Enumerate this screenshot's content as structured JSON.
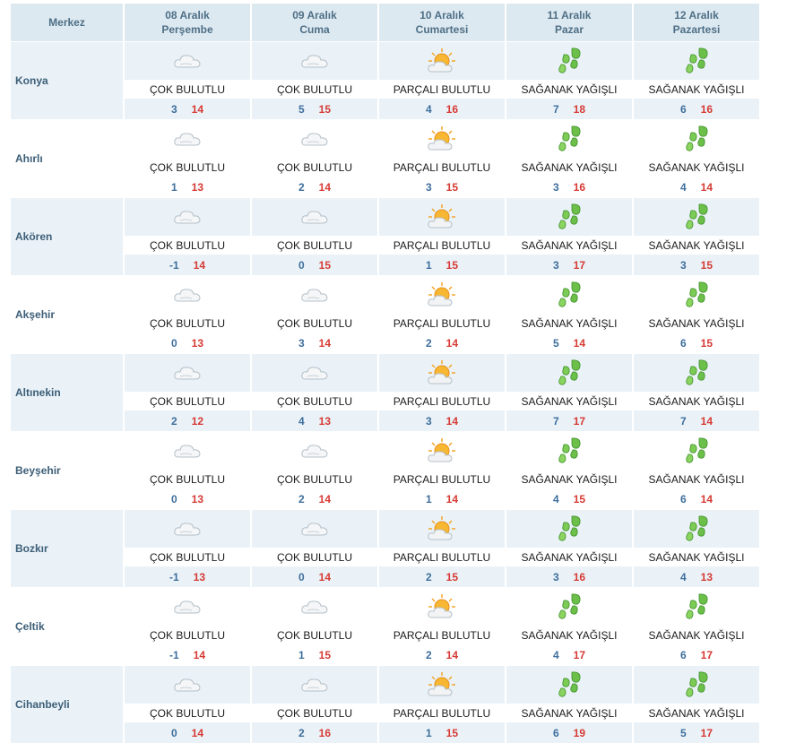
{
  "header": {
    "col0": "Merkez",
    "days": [
      {
        "date": "08 Aralık",
        "weekday": "Perşembe"
      },
      {
        "date": "09 Aralık",
        "weekday": "Cuma"
      },
      {
        "date": "10 Aralık",
        "weekday": "Cumartesi"
      },
      {
        "date": "11 Aralık",
        "weekday": "Pazar"
      },
      {
        "date": "12 Aralık",
        "weekday": "Pazartesi"
      }
    ]
  },
  "cities": [
    {
      "name": "Konya",
      "days": [
        {
          "icon": "cloud-icon",
          "desc": "ÇOK BULUTLU",
          "min": "3",
          "max": "14"
        },
        {
          "icon": "cloud-icon",
          "desc": "ÇOK BULUTLU",
          "min": "5",
          "max": "15"
        },
        {
          "icon": "sun-cloud-icon",
          "desc": "PARÇALI BULUTLU",
          "min": "4",
          "max": "16"
        },
        {
          "icon": "shower-icon",
          "desc": "SAĞANAK YAĞIŞLI",
          "min": "7",
          "max": "18"
        },
        {
          "icon": "shower-icon",
          "desc": "SAĞANAK YAĞIŞLI",
          "min": "6",
          "max": "16"
        }
      ]
    },
    {
      "name": "Ahırlı",
      "days": [
        {
          "icon": "cloud-icon",
          "desc": "ÇOK BULUTLU",
          "min": "1",
          "max": "13"
        },
        {
          "icon": "cloud-icon",
          "desc": "ÇOK BULUTLU",
          "min": "2",
          "max": "14"
        },
        {
          "icon": "sun-cloud-icon",
          "desc": "PARÇALI BULUTLU",
          "min": "3",
          "max": "15"
        },
        {
          "icon": "shower-icon",
          "desc": "SAĞANAK YAĞIŞLI",
          "min": "3",
          "max": "16"
        },
        {
          "icon": "shower-icon",
          "desc": "SAĞANAK YAĞIŞLI",
          "min": "4",
          "max": "14"
        }
      ]
    },
    {
      "name": "Akören",
      "days": [
        {
          "icon": "cloud-icon",
          "desc": "ÇOK BULUTLU",
          "min": "-1",
          "max": "14"
        },
        {
          "icon": "cloud-icon",
          "desc": "ÇOK BULUTLU",
          "min": "0",
          "max": "15"
        },
        {
          "icon": "sun-cloud-icon",
          "desc": "PARÇALI BULUTLU",
          "min": "1",
          "max": "15"
        },
        {
          "icon": "shower-icon",
          "desc": "SAĞANAK YAĞIŞLI",
          "min": "3",
          "max": "17"
        },
        {
          "icon": "shower-icon",
          "desc": "SAĞANAK YAĞIŞLI",
          "min": "3",
          "max": "15"
        }
      ]
    },
    {
      "name": "Akşehir",
      "days": [
        {
          "icon": "cloud-icon",
          "desc": "ÇOK BULUTLU",
          "min": "0",
          "max": "13"
        },
        {
          "icon": "cloud-icon",
          "desc": "ÇOK BULUTLU",
          "min": "3",
          "max": "14"
        },
        {
          "icon": "sun-cloud-icon",
          "desc": "PARÇALI BULUTLU",
          "min": "2",
          "max": "14"
        },
        {
          "icon": "shower-icon",
          "desc": "SAĞANAK YAĞIŞLI",
          "min": "5",
          "max": "14"
        },
        {
          "icon": "shower-icon",
          "desc": "SAĞANAK YAĞIŞLI",
          "min": "6",
          "max": "15"
        }
      ]
    },
    {
      "name": "Altınekin",
      "days": [
        {
          "icon": "cloud-icon",
          "desc": "ÇOK BULUTLU",
          "min": "2",
          "max": "12"
        },
        {
          "icon": "cloud-icon",
          "desc": "ÇOK BULUTLU",
          "min": "4",
          "max": "13"
        },
        {
          "icon": "sun-cloud-icon",
          "desc": "PARÇALI BULUTLU",
          "min": "3",
          "max": "14"
        },
        {
          "icon": "shower-icon",
          "desc": "SAĞANAK YAĞIŞLI",
          "min": "7",
          "max": "17"
        },
        {
          "icon": "shower-icon",
          "desc": "SAĞANAK YAĞIŞLI",
          "min": "7",
          "max": "14"
        }
      ]
    },
    {
      "name": "Beyşehir",
      "days": [
        {
          "icon": "cloud-icon",
          "desc": "ÇOK BULUTLU",
          "min": "0",
          "max": "13"
        },
        {
          "icon": "cloud-icon",
          "desc": "ÇOK BULUTLU",
          "min": "2",
          "max": "14"
        },
        {
          "icon": "sun-cloud-icon",
          "desc": "PARÇALI BULUTLU",
          "min": "1",
          "max": "14"
        },
        {
          "icon": "shower-icon",
          "desc": "SAĞANAK YAĞIŞLI",
          "min": "4",
          "max": "15"
        },
        {
          "icon": "shower-icon",
          "desc": "SAĞANAK YAĞIŞLI",
          "min": "6",
          "max": "14"
        }
      ]
    },
    {
      "name": "Bozkır",
      "days": [
        {
          "icon": "cloud-icon",
          "desc": "ÇOK BULUTLU",
          "min": "-1",
          "max": "13"
        },
        {
          "icon": "cloud-icon",
          "desc": "ÇOK BULUTLU",
          "min": "0",
          "max": "14"
        },
        {
          "icon": "sun-cloud-icon",
          "desc": "PARÇALI BULUTLU",
          "min": "2",
          "max": "15"
        },
        {
          "icon": "shower-icon",
          "desc": "SAĞANAK YAĞIŞLI",
          "min": "3",
          "max": "16"
        },
        {
          "icon": "shower-icon",
          "desc": "SAĞANAK YAĞIŞLI",
          "min": "4",
          "max": "13"
        }
      ]
    },
    {
      "name": "Çeltik",
      "days": [
        {
          "icon": "cloud-icon",
          "desc": "ÇOK BULUTLU",
          "min": "-1",
          "max": "14"
        },
        {
          "icon": "cloud-icon",
          "desc": "ÇOK BULUTLU",
          "min": "1",
          "max": "15"
        },
        {
          "icon": "sun-cloud-icon",
          "desc": "PARÇALI BULUTLU",
          "min": "2",
          "max": "14"
        },
        {
          "icon": "shower-icon",
          "desc": "SAĞANAK YAĞIŞLI",
          "min": "4",
          "max": "17"
        },
        {
          "icon": "shower-icon",
          "desc": "SAĞANAK YAĞIŞLI",
          "min": "6",
          "max": "17"
        }
      ]
    },
    {
      "name": "Cihanbeyli",
      "days": [
        {
          "icon": "cloud-icon",
          "desc": "ÇOK BULUTLU",
          "min": "0",
          "max": "14"
        },
        {
          "icon": "cloud-icon",
          "desc": "ÇOK BULUTLU",
          "min": "2",
          "max": "16"
        },
        {
          "icon": "sun-cloud-icon",
          "desc": "PARÇALI BULUTLU",
          "min": "1",
          "max": "15"
        },
        {
          "icon": "shower-icon",
          "desc": "SAĞANAK YAĞIŞLI",
          "min": "6",
          "max": "19"
        },
        {
          "icon": "shower-icon",
          "desc": "SAĞANAK YAĞIŞLI",
          "min": "5",
          "max": "17"
        }
      ]
    }
  ],
  "colors": {
    "min_temp": "#3d6e9c",
    "max_temp": "#d63a33",
    "header_bg": "#dde9f1",
    "alt_row_bg": "#eaf2f8"
  }
}
